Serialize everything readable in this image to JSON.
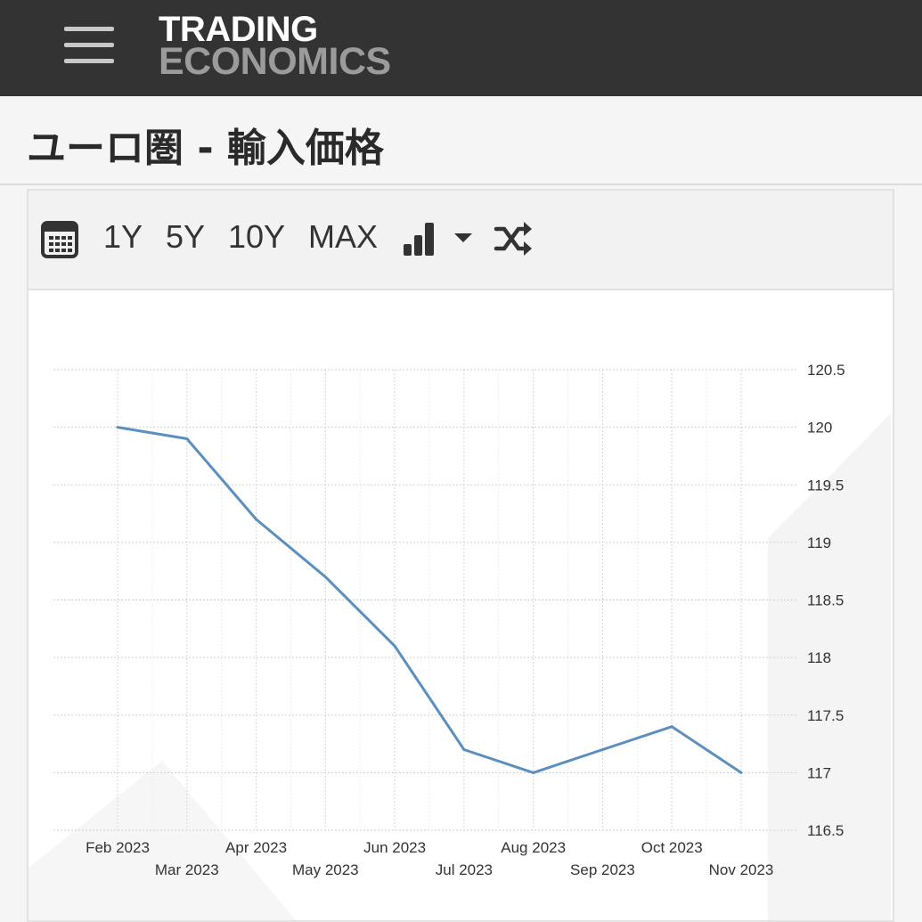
{
  "header": {
    "logo_line1": "TRADING",
    "logo_line2": "ECONOMICS"
  },
  "page": {
    "title": "ユーロ圏 - 輸入価格"
  },
  "toolbar": {
    "range_1y": "1Y",
    "range_5y": "5Y",
    "range_10y": "10Y",
    "range_max": "MAX"
  },
  "colors": {
    "topbar": "#333333",
    "line": "#5b8fbf",
    "grid": "#d9d9d9"
  },
  "chart_data": {
    "type": "line",
    "title": "",
    "xlabel": "",
    "ylabel": "",
    "x": [
      "Feb 2023",
      "Mar 2023",
      "Apr 2023",
      "May 2023",
      "Jun 2023",
      "Jul 2023",
      "Aug 2023",
      "Sep 2023",
      "Oct 2023",
      "Nov 2023"
    ],
    "series": [
      {
        "values": [
          120.0,
          119.9,
          119.2,
          118.7,
          118.1,
          117.2,
          117.0,
          117.2,
          117.4,
          117.0
        ]
      }
    ],
    "ylim": [
      116.5,
      120.5
    ],
    "yticks": [
      "120.5",
      "120",
      "119.5",
      "119",
      "118.5",
      "118",
      "117.5",
      "117",
      "116.5"
    ],
    "y_axis_side": "right",
    "grid": true,
    "legend": "none"
  }
}
